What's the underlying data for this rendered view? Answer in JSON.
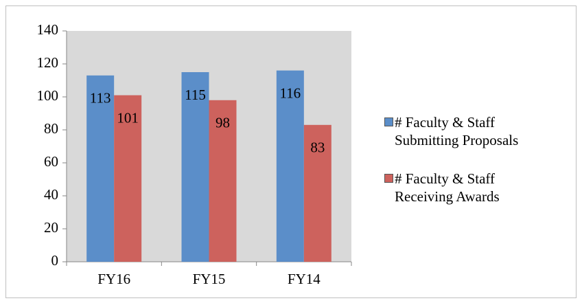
{
  "chart_data": {
    "type": "bar",
    "categories": [
      "FY16",
      "FY15",
      "FY14"
    ],
    "series": [
      {
        "name": "# Faculty & Staff Submitting Proposals",
        "color": "#5b8ec9",
        "values": [
          113,
          115,
          116
        ]
      },
      {
        "name": "# Faculty & Staff Receiving Awards",
        "color": "#cd625d",
        "values": [
          101,
          98,
          83
        ]
      }
    ],
    "ylim": [
      0,
      140
    ],
    "yticks": [
      0,
      20,
      40,
      60,
      80,
      100,
      120,
      140
    ],
    "plot_background": "#d9d9d9",
    "legend": "right"
  }
}
